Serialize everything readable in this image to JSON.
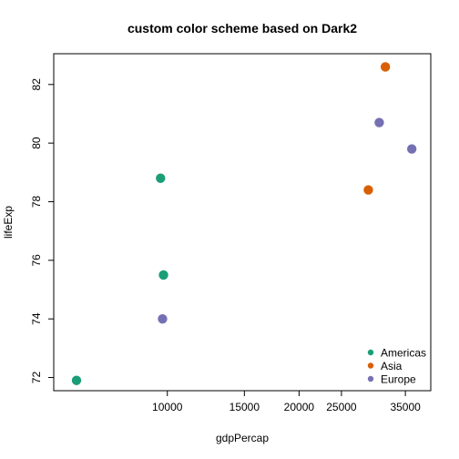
{
  "chart_data": {
    "type": "scatter",
    "title": "custom color scheme based on Dark2",
    "xlabel": "gdpPercap",
    "ylabel": "lifeExp",
    "x_scale": "log",
    "xlim": [
      5500,
      40000
    ],
    "ylim": [
      71.55,
      83.05
    ],
    "x_ticks": [
      10000,
      15000,
      20000,
      25000,
      35000
    ],
    "x_tick_labels": [
      "10000",
      "15000",
      "20000",
      "25000",
      "35000"
    ],
    "y_ticks": [
      72,
      74,
      76,
      78,
      80,
      82
    ],
    "y_tick_labels": [
      "72",
      "74",
      "76",
      "78",
      "80",
      "82"
    ],
    "grid": false,
    "legend_position": "bottom-right",
    "colors": {
      "Americas": "#1B9E77",
      "Asia": "#D95F02",
      "Europe": "#7570B3"
    },
    "series": [
      {
        "name": "Americas",
        "points": [
          {
            "x": 6200,
            "y": 71.9
          },
          {
            "x": 9650,
            "y": 78.8
          },
          {
            "x": 9800,
            "y": 75.5
          }
        ]
      },
      {
        "name": "Asia",
        "points": [
          {
            "x": 28800,
            "y": 78.4
          },
          {
            "x": 31500,
            "y": 82.6
          }
        ]
      },
      {
        "name": "Europe",
        "points": [
          {
            "x": 9750,
            "y": 74.0
          },
          {
            "x": 30500,
            "y": 80.7
          },
          {
            "x": 36200,
            "y": 79.8
          }
        ]
      }
    ]
  }
}
